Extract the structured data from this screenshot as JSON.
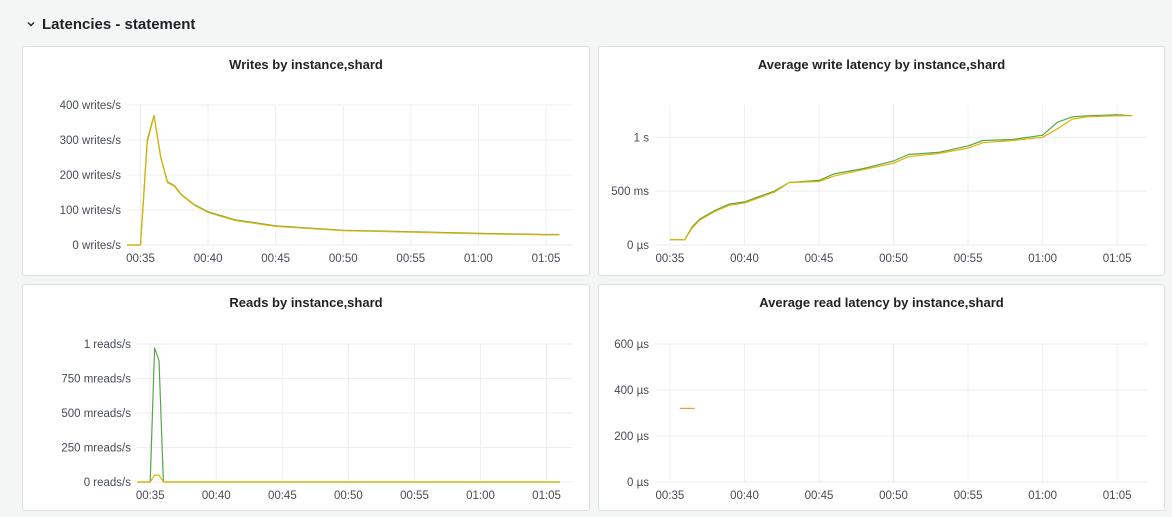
{
  "row": {
    "title": "Latencies - statement",
    "collapse_icon": "chevron-down-icon"
  },
  "colors": {
    "series_green": "#56a64b",
    "series_yellow": "#e0b400",
    "series_orange": "#ff9830",
    "grid": "#eceef0",
    "panel_bg": "#ffffff",
    "page_bg": "#f4f5f5"
  },
  "panels": [
    {
      "id": "writes",
      "title": "Writes by instance,shard",
      "chart_data": {
        "type": "line",
        "title": "Writes by instance,shard",
        "xlabel": "",
        "ylabel": "",
        "xlim": [
          "00:34",
          "01:07"
        ],
        "ylim": [
          0,
          400
        ],
        "x_ticks": [
          "00:35",
          "00:40",
          "00:45",
          "00:50",
          "00:55",
          "01:00",
          "01:05"
        ],
        "y_ticks": [
          {
            "value": 0,
            "label": "0 writes/s"
          },
          {
            "value": 100,
            "label": "100 writes/s"
          },
          {
            "value": 200,
            "label": "200 writes/s"
          },
          {
            "value": 300,
            "label": "300 writes/s"
          },
          {
            "value": 400,
            "label": "400 writes/s"
          }
        ],
        "grid": true,
        "series": [
          {
            "color": "#56a64b",
            "x": [
              "00:34",
              "00:35",
              "00:35:30",
              "00:36",
              "00:36:30",
              "00:37",
              "00:37:30",
              "00:38",
              "00:39",
              "00:40",
              "00:42",
              "00:45",
              "00:50",
              "00:55",
              "01:00",
              "01:05",
              "01:06"
            ],
            "y": [
              0,
              0,
              300,
              370,
              250,
              180,
              170,
              145,
              115,
              95,
              72,
              55,
              42,
              38,
              33,
              30,
              30
            ]
          },
          {
            "color": "#e0b400",
            "x": [
              "00:34",
              "00:35",
              "00:35:30",
              "00:36",
              "00:36:30",
              "00:37",
              "00:37:30",
              "00:38",
              "00:39",
              "00:40",
              "00:42",
              "00:45",
              "00:50",
              "00:55",
              "01:00",
              "01:05",
              "01:06"
            ],
            "y": [
              0,
              0,
              295,
              368,
              248,
              178,
              168,
              143,
              113,
              93,
              70,
              53,
              41,
              37,
              32,
              29,
              29
            ]
          }
        ]
      }
    },
    {
      "id": "avg-write-latency",
      "title": "Average write latency by instance,shard",
      "chart_data": {
        "type": "line",
        "title": "Average write latency by instance,shard",
        "xlabel": "",
        "ylabel": "",
        "xlim": [
          "00:34",
          "01:07"
        ],
        "ylim": [
          0,
          1.3
        ],
        "y_unit": "s",
        "x_ticks": [
          "00:35",
          "00:40",
          "00:45",
          "00:50",
          "00:55",
          "01:00",
          "01:05"
        ],
        "y_ticks": [
          {
            "value": 0,
            "label": "0 µs"
          },
          {
            "value": 0.5,
            "label": "500 ms"
          },
          {
            "value": 1,
            "label": "1 s"
          }
        ],
        "grid": true,
        "series": [
          {
            "color": "#56a64b",
            "x": [
              "00:35",
              "00:36",
              "00:36:30",
              "00:37",
              "00:38",
              "00:39",
              "00:40",
              "00:41",
              "00:42",
              "00:43",
              "00:45",
              "00:46",
              "00:48",
              "00:50",
              "00:51",
              "00:53",
              "00:55",
              "00:56",
              "00:58",
              "01:00",
              "01:01",
              "01:02",
              "01:03",
              "01:05",
              "01:06"
            ],
            "y": [
              0.05,
              0.05,
              0.17,
              0.24,
              0.32,
              0.38,
              0.4,
              0.45,
              0.5,
              0.58,
              0.6,
              0.66,
              0.71,
              0.78,
              0.84,
              0.86,
              0.92,
              0.97,
              0.98,
              1.02,
              1.14,
              1.19,
              1.2,
              1.21,
              1.2
            ]
          },
          {
            "color": "#e0b400",
            "x": [
              "00:35",
              "00:36",
              "00:36:30",
              "00:37",
              "00:38",
              "00:39",
              "00:40",
              "00:41",
              "00:42",
              "00:43",
              "00:45",
              "00:46",
              "00:48",
              "00:50",
              "00:51",
              "00:53",
              "00:55",
              "00:56",
              "00:58",
              "01:00",
              "01:01",
              "01:02",
              "01:03",
              "01:05",
              "01:06"
            ],
            "y": [
              0.05,
              0.05,
              0.16,
              0.23,
              0.31,
              0.37,
              0.39,
              0.44,
              0.49,
              0.58,
              0.59,
              0.64,
              0.7,
              0.76,
              0.82,
              0.85,
              0.9,
              0.95,
              0.97,
              1.0,
              1.08,
              1.17,
              1.19,
              1.2,
              1.2
            ]
          }
        ]
      }
    },
    {
      "id": "reads",
      "title": "Reads by instance,shard",
      "chart_data": {
        "type": "line",
        "title": "Reads by instance,shard",
        "xlabel": "",
        "ylabel": "",
        "xlim": [
          "00:34",
          "01:07"
        ],
        "ylim": [
          0,
          1.0
        ],
        "x_ticks": [
          "00:35",
          "00:40",
          "00:45",
          "00:50",
          "00:55",
          "01:00",
          "01:05"
        ],
        "y_ticks": [
          {
            "value": 0,
            "label": "0 reads/s"
          },
          {
            "value": 0.25,
            "label": "250 mreads/s"
          },
          {
            "value": 0.5,
            "label": "500 mreads/s"
          },
          {
            "value": 0.75,
            "label": "750 mreads/s"
          },
          {
            "value": 1,
            "label": "1 reads/s"
          }
        ],
        "grid": true,
        "series": [
          {
            "color": "#56a64b",
            "x": [
              "00:34",
              "00:35",
              "00:35:20",
              "00:35:40",
              "00:36",
              "00:36:20",
              "01:06"
            ],
            "y": [
              0,
              0,
              0.97,
              0.88,
              0,
              0,
              0
            ]
          },
          {
            "color": "#e0b400",
            "x": [
              "00:34",
              "00:35",
              "00:35:20",
              "00:35:40",
              "00:36",
              "01:06"
            ],
            "y": [
              0,
              0,
              0.05,
              0.05,
              0,
              0
            ]
          }
        ]
      }
    },
    {
      "id": "avg-read-latency",
      "title": "Average read latency by instance,shard",
      "chart_data": {
        "type": "line",
        "title": "Average read latency by instance,shard",
        "xlabel": "",
        "ylabel": "",
        "xlim": [
          "00:34",
          "01:07"
        ],
        "ylim": [
          0,
          600
        ],
        "y_unit": "µs",
        "x_ticks": [
          "00:35",
          "00:40",
          "00:45",
          "00:50",
          "00:55",
          "01:00",
          "01:05"
        ],
        "y_ticks": [
          {
            "value": 0,
            "label": "0 µs"
          },
          {
            "value": 200,
            "label": "200 µs"
          },
          {
            "value": 400,
            "label": "400 µs"
          },
          {
            "value": 600,
            "label": "600 µs"
          }
        ],
        "grid": true,
        "series": [
          {
            "color": "#ff9830",
            "x": [
              "00:35:40",
              "00:36:40"
            ],
            "y": [
              320,
              320
            ]
          }
        ]
      }
    }
  ]
}
